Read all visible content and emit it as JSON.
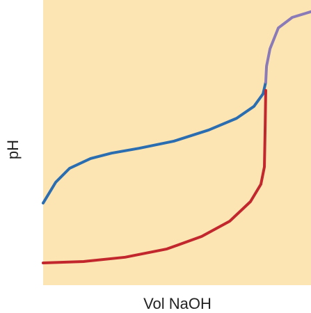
{
  "chart_data": {
    "type": "line",
    "x_label": "Vol NaOH",
    "y_label": "pH",
    "xlim": [
      0,
      100
    ],
    "ylim": [
      0,
      100
    ],
    "background": "#fce4b3",
    "series": [
      {
        "color": "#2a6db0",
        "x": [
          0,
          4.7,
          9.9,
          17.7,
          25.5,
          35.8,
          48.8,
          61.8,
          72.2,
          78.7,
          82.1,
          83.1
        ],
        "values": [
          28.8,
          36.1,
          41.0,
          44.4,
          46.3,
          48.0,
          50.5,
          54.4,
          58.5,
          62.7,
          67.1,
          71.2
        ]
      },
      {
        "color": "#8a7bb8",
        "x": [
          83.1,
          83.4,
          84.7,
          87.8,
          93.0,
          100
        ],
        "values": [
          71.2,
          76.8,
          82.9,
          90.2,
          93.9,
          95.9
        ]
      },
      {
        "color": "#c1272d",
        "x": [
          0,
          15.1,
          30.6,
          46.2,
          59.2,
          69.6,
          77.4,
          81.3,
          82.6,
          82.9,
          83.1
        ],
        "values": [
          7.8,
          8.3,
          9.8,
          12.7,
          17.1,
          22.4,
          29.3,
          35.4,
          41.5,
          56.1,
          68.3
        ]
      }
    ]
  }
}
